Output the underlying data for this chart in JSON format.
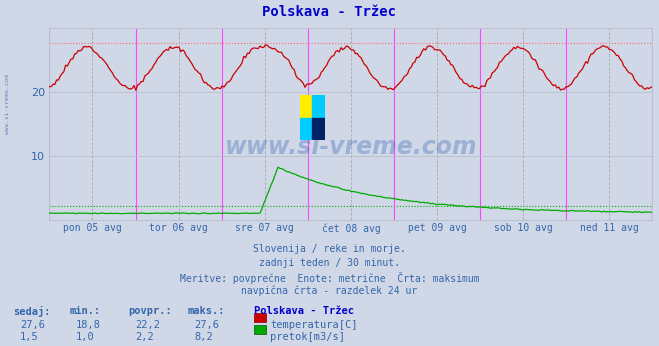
{
  "title": "Polskava - Tržec",
  "bg_color": "#d0d8e8",
  "plot_bg_color": "#d0d8e8",
  "grid_color": "#b8c0d0",
  "temp_color": "#cc0000",
  "flow_color": "#00aa00",
  "max_temp_line_color": "#ff6666",
  "avg_flow_line_color": "#00aa00",
  "avg_temp_line_color": "#ff6666",
  "vline_solid_color": "#ff44ff",
  "vline_dashed_color": "#aaaaaa",
  "ylim": [
    0,
    30
  ],
  "yticks": [
    10,
    20
  ],
  "temp_max": 27.6,
  "temp_min": 18.8,
  "temp_avg": 22.2,
  "flow_sedaj": 1.5,
  "flow_min": 1.0,
  "flow_avg": 2.2,
  "flow_max": 8.2,
  "xlabel_ticks": [
    "pon 05 avg",
    "tor 06 avg",
    "sre 07 avg",
    "čet 08 avg",
    "pet 09 avg",
    "sob 10 avg",
    "ned 11 avg"
  ],
  "subtitle1": "Slovenija / reke in morje.",
  "subtitle2": "zadnji teden / 30 minut.",
  "subtitle3": "Meritve: povprečne  Enote: metrične  Črta: maksimum",
  "subtitle4": "navpična črta - razdelek 24 ur",
  "text_color": "#3366aa",
  "title_color": "#0000cc",
  "watermark": "www.si-vreme.com",
  "n_points": 336,
  "logo_colors": [
    "#ffee00",
    "#00ccff",
    "#00ccff",
    "#002266"
  ]
}
